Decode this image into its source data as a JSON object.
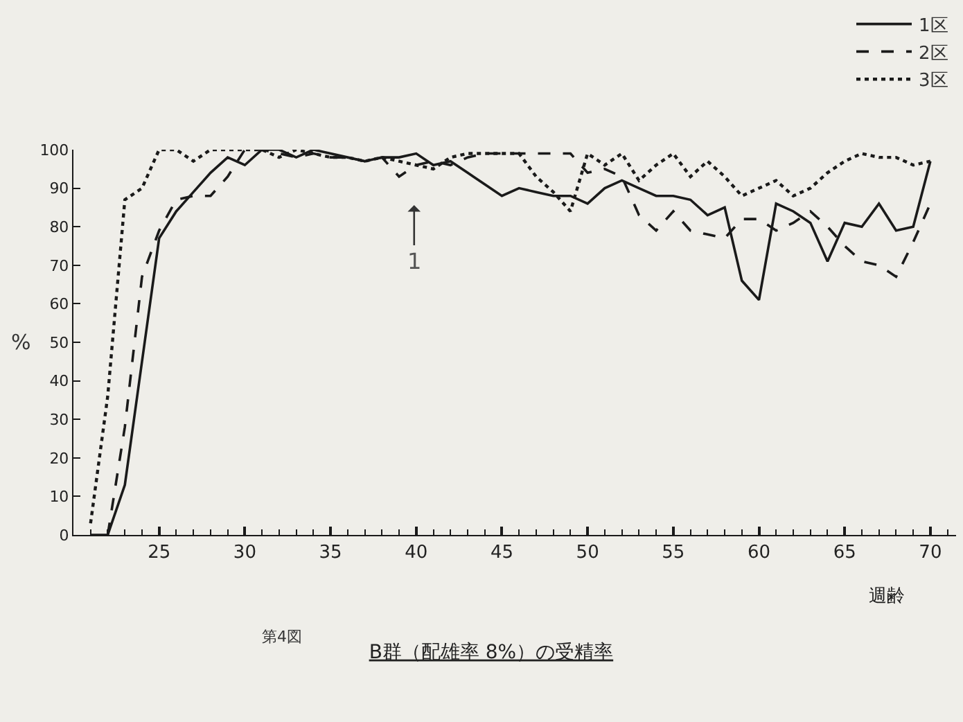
{
  "chart_data": {
    "type": "line",
    "title": "B群（配雄率 8%）の受精率",
    "xlabel": "週齢",
    "ylabel": "%",
    "annotations": [
      "第4図",
      "1"
    ],
    "x": [
      21,
      22,
      23,
      24,
      25,
      26,
      27,
      28,
      29,
      30,
      31,
      32,
      33,
      34,
      35,
      36,
      37,
      38,
      39,
      40,
      41,
      42,
      43,
      44,
      45,
      46,
      47,
      48,
      49,
      50,
      51,
      52,
      53,
      54,
      55,
      56,
      57,
      58,
      59,
      60,
      61,
      62,
      63,
      64,
      65,
      66,
      67,
      68,
      69,
      70
    ],
    "series": [
      {
        "name": "1区",
        "color": "#1a1a1a",
        "line_style": "solid",
        "values": [
          0,
          0,
          13,
          45,
          77,
          84,
          89,
          94,
          98,
          96,
          100,
          100,
          98,
          100,
          99,
          98,
          97,
          98,
          98,
          99,
          96,
          97,
          94,
          91,
          88,
          90,
          89,
          88,
          88,
          86,
          90,
          92,
          90,
          88,
          88,
          87,
          83,
          85,
          66,
          61,
          86,
          84,
          81,
          71,
          81,
          80,
          86,
          79,
          80,
          97
        ]
      },
      {
        "name": "2区",
        "color": "#1a1a1a",
        "line_style": "dashed",
        "values": [
          null,
          0,
          28,
          67,
          79,
          87,
          88,
          88,
          93,
          100,
          100,
          99,
          98,
          99,
          98,
          98,
          97,
          98,
          93,
          96,
          97,
          96,
          98,
          99,
          99,
          99,
          99,
          99,
          99,
          94,
          95,
          93,
          83,
          79,
          84,
          79,
          78,
          77,
          82,
          82,
          79,
          81,
          84,
          80,
          75,
          71,
          70,
          67,
          76,
          86
        ]
      },
      {
        "name": "3区",
        "color": "#1a1a1a",
        "line_style": "dotted",
        "values": [
          3,
          36,
          87,
          90,
          100,
          100,
          97,
          100,
          100,
          100,
          100,
          98,
          100,
          99,
          98,
          98,
          97,
          98,
          97,
          96,
          95,
          98,
          99,
          99,
          99,
          99,
          93,
          89,
          84,
          99,
          96,
          99,
          92,
          96,
          99,
          93,
          97,
          93,
          88,
          90,
          92,
          88,
          90,
          94,
          97,
          99,
          98,
          98,
          96,
          97
        ]
      }
    ],
    "xlim": [
      20,
      71.5
    ],
    "xticks": [
      {
        "value": 21,
        "label": null
      },
      {
        "value": 22,
        "label": null
      },
      {
        "value": 23,
        "label": null
      },
      {
        "value": 24,
        "label": null
      },
      25,
      {
        "value": 26,
        "label": null
      },
      {
        "value": 27,
        "label": null
      },
      {
        "value": 28,
        "label": null
      },
      {
        "value": 29,
        "label": null
      },
      30,
      {
        "value": 31,
        "label": null
      },
      {
        "value": 32,
        "label": null
      },
      {
        "value": 33,
        "label": null
      },
      {
        "value": 34,
        "label": null
      },
      35,
      {
        "value": 36,
        "label": null
      },
      {
        "value": 37,
        "label": null
      },
      {
        "value": 38,
        "label": null
      },
      {
        "value": 39,
        "label": null
      },
      40,
      {
        "value": 41,
        "label": null
      },
      {
        "value": 42,
        "label": null
      },
      {
        "value": 43,
        "label": null
      },
      {
        "value": 44,
        "label": null
      },
      45,
      {
        "value": 46,
        "label": null
      },
      {
        "value": 47,
        "label": null
      },
      {
        "value": 48,
        "label": null
      },
      {
        "value": 49,
        "label": null
      },
      50,
      {
        "value": 51,
        "label": null
      },
      {
        "value": 52,
        "label": null
      },
      {
        "value": 53,
        "label": null
      },
      {
        "value": 54,
        "label": null
      },
      55,
      {
        "value": 56,
        "label": null
      },
      {
        "value": 57,
        "label": null
      },
      {
        "value": 58,
        "label": null
      },
      {
        "value": 59,
        "label": null
      },
      60,
      {
        "value": 61,
        "label": null
      },
      {
        "value": 62,
        "label": null
      },
      {
        "value": 63,
        "label": null
      },
      {
        "value": 64,
        "label": null
      },
      65,
      {
        "value": 66,
        "label": null
      },
      {
        "value": 67,
        "label": null
      },
      {
        "value": 68,
        "label": null
      },
      {
        "value": 69,
        "label": null
      },
      70,
      {
        "value": 71,
        "label": null
      }
    ],
    "ylim": [
      0,
      100
    ],
    "yticks": [
      0,
      10,
      20,
      30,
      40,
      50,
      60,
      70,
      80,
      90,
      100
    ],
    "legend": "top right",
    "marker": "none",
    "grid": false
  }
}
